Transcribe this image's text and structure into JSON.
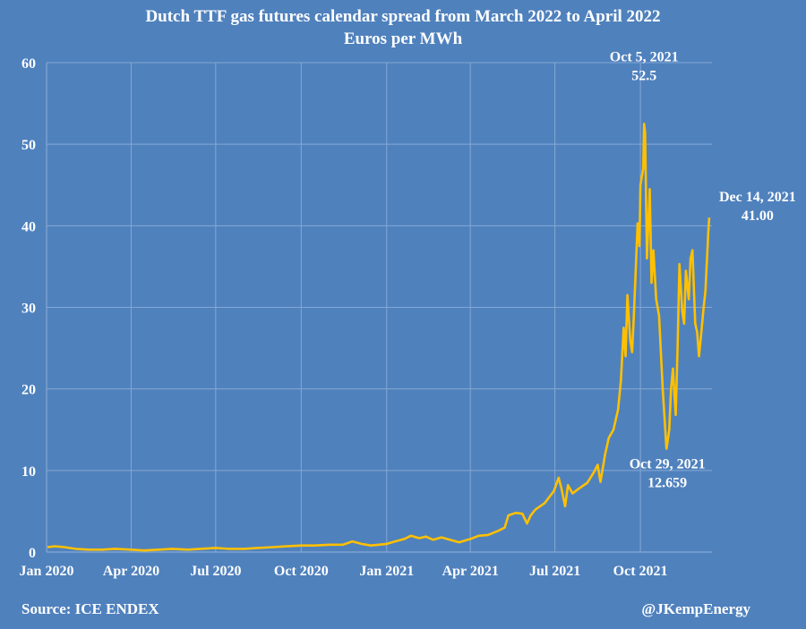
{
  "header": {
    "title": "Dutch TTF gas futures calendar spread from March 2022 to April 2022",
    "subtitle": "Euros per MWh"
  },
  "footer": {
    "source": "Source: ICE ENDEX",
    "handle": "@JKempEnergy"
  },
  "colors": {
    "background": "#4f81bd",
    "line": "#ffc000",
    "grid": "#86a8d4",
    "text": "#ffffff"
  },
  "chart_data": {
    "type": "line",
    "title": "Dutch TTF gas futures calendar spread from March 2022 to April 2022",
    "ylabel": "Euros per MWh",
    "xlabel": "",
    "ylim": [
      0,
      60
    ],
    "xlim": [
      "2020-01-01",
      "2021-12-17"
    ],
    "grid": true,
    "y_ticks": [
      0,
      10,
      20,
      30,
      40,
      50,
      60
    ],
    "x_ticks": [
      {
        "date": "2020-01-01",
        "label": "Jan 2020"
      },
      {
        "date": "2020-04-01",
        "label": "Apr 2020"
      },
      {
        "date": "2020-07-01",
        "label": "Jul 2020"
      },
      {
        "date": "2020-10-01",
        "label": "Oct 2020"
      },
      {
        "date": "2021-01-01",
        "label": "Jan 2021"
      },
      {
        "date": "2021-04-01",
        "label": "Apr 2021"
      },
      {
        "date": "2021-07-01",
        "label": "Jul 2021"
      },
      {
        "date": "2021-10-01",
        "label": "Oct 2021"
      }
    ],
    "series": [
      {
        "points": [
          [
            "2020-01-02",
            0.6
          ],
          [
            "2020-01-10",
            0.7
          ],
          [
            "2020-01-20",
            0.6
          ],
          [
            "2020-02-01",
            0.4
          ],
          [
            "2020-02-15",
            0.3
          ],
          [
            "2020-03-01",
            0.3
          ],
          [
            "2020-03-15",
            0.4
          ],
          [
            "2020-04-01",
            0.3
          ],
          [
            "2020-04-15",
            0.2
          ],
          [
            "2020-05-01",
            0.3
          ],
          [
            "2020-05-15",
            0.4
          ],
          [
            "2020-06-01",
            0.3
          ],
          [
            "2020-06-15",
            0.4
          ],
          [
            "2020-07-01",
            0.5
          ],
          [
            "2020-07-15",
            0.4
          ],
          [
            "2020-08-01",
            0.4
          ],
          [
            "2020-08-15",
            0.5
          ],
          [
            "2020-09-01",
            0.6
          ],
          [
            "2020-09-15",
            0.7
          ],
          [
            "2020-10-01",
            0.8
          ],
          [
            "2020-10-15",
            0.8
          ],
          [
            "2020-11-01",
            0.9
          ],
          [
            "2020-11-15",
            0.9
          ],
          [
            "2020-11-25",
            1.3
          ],
          [
            "2020-12-05",
            1.0
          ],
          [
            "2020-12-15",
            0.8
          ],
          [
            "2021-01-01",
            1.0
          ],
          [
            "2021-01-10",
            1.3
          ],
          [
            "2021-01-20",
            1.6
          ],
          [
            "2021-01-27",
            2.0
          ],
          [
            "2021-02-05",
            1.7
          ],
          [
            "2021-02-12",
            1.9
          ],
          [
            "2021-02-20",
            1.5
          ],
          [
            "2021-03-01",
            1.8
          ],
          [
            "2021-03-10",
            1.5
          ],
          [
            "2021-03-20",
            1.2
          ],
          [
            "2021-04-01",
            1.6
          ],
          [
            "2021-04-10",
            2.0
          ],
          [
            "2021-04-20",
            2.1
          ],
          [
            "2021-05-01",
            2.6
          ],
          [
            "2021-05-08",
            3.0
          ],
          [
            "2021-05-12",
            4.5
          ],
          [
            "2021-05-20",
            4.8
          ],
          [
            "2021-05-27",
            4.7
          ],
          [
            "2021-06-01",
            3.5
          ],
          [
            "2021-06-05",
            4.5
          ],
          [
            "2021-06-10",
            5.2
          ],
          [
            "2021-06-20",
            6.0
          ],
          [
            "2021-06-30",
            7.5
          ],
          [
            "2021-07-05",
            9.1
          ],
          [
            "2021-07-08",
            7.8
          ],
          [
            "2021-07-12",
            5.6
          ],
          [
            "2021-07-15",
            8.2
          ],
          [
            "2021-07-20",
            7.2
          ],
          [
            "2021-07-27",
            7.8
          ],
          [
            "2021-08-05",
            8.5
          ],
          [
            "2021-08-12",
            9.8
          ],
          [
            "2021-08-16",
            10.7
          ],
          [
            "2021-08-19",
            8.6
          ],
          [
            "2021-08-24",
            12.0
          ],
          [
            "2021-08-28",
            14.0
          ],
          [
            "2021-09-02",
            15.0
          ],
          [
            "2021-09-07",
            17.5
          ],
          [
            "2021-09-10",
            21.0
          ],
          [
            "2021-09-13",
            27.5
          ],
          [
            "2021-09-15",
            24.0
          ],
          [
            "2021-09-17",
            31.5
          ],
          [
            "2021-09-20",
            26.0
          ],
          [
            "2021-09-22",
            24.5
          ],
          [
            "2021-09-24",
            29.0
          ],
          [
            "2021-09-28",
            40.3
          ],
          [
            "2021-09-30",
            37.5
          ],
          [
            "2021-10-01",
            45.0
          ],
          [
            "2021-10-04",
            47.0
          ],
          [
            "2021-10-05",
            52.5
          ],
          [
            "2021-10-06",
            51.5
          ],
          [
            "2021-10-08",
            36.0
          ],
          [
            "2021-10-11",
            44.5
          ],
          [
            "2021-10-13",
            33.0
          ],
          [
            "2021-10-15",
            37.0
          ],
          [
            "2021-10-18",
            31.0
          ],
          [
            "2021-10-21",
            29.0
          ],
          [
            "2021-10-25",
            20.0
          ],
          [
            "2021-10-29",
            12.659
          ],
          [
            "2021-11-01",
            15.0
          ],
          [
            "2021-11-03",
            20.0
          ],
          [
            "2021-11-05",
            22.5
          ],
          [
            "2021-11-08",
            16.8
          ],
          [
            "2021-11-10",
            25.0
          ],
          [
            "2021-11-12",
            35.3
          ],
          [
            "2021-11-15",
            29.5
          ],
          [
            "2021-11-17",
            28.0
          ],
          [
            "2021-11-19",
            34.5
          ],
          [
            "2021-11-22",
            31.0
          ],
          [
            "2021-11-24",
            36.0
          ],
          [
            "2021-11-26",
            37.0
          ],
          [
            "2021-11-29",
            28.0
          ],
          [
            "2021-12-01",
            27.0
          ],
          [
            "2021-12-03",
            24.0
          ],
          [
            "2021-12-06",
            27.5
          ],
          [
            "2021-12-08",
            30.0
          ],
          [
            "2021-12-10",
            32.0
          ],
          [
            "2021-12-13",
            39.0
          ],
          [
            "2021-12-14",
            41.0
          ]
        ]
      }
    ],
    "annotations": [
      {
        "date": "2021-10-05",
        "value": 52.5,
        "lines": [
          "Oct 5, 2021",
          "52.5"
        ]
      },
      {
        "date": "2021-12-14",
        "value": 41.0,
        "lines": [
          "Dec 14, 2021",
          "41.00"
        ]
      },
      {
        "date": "2021-10-29",
        "value": 12.659,
        "lines": [
          "Oct 29, 2021",
          "12.659"
        ]
      }
    ]
  }
}
